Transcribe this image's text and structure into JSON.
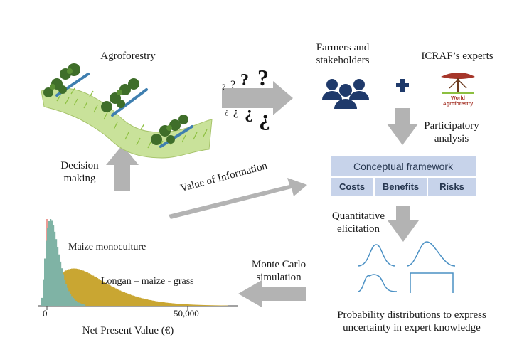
{
  "agroforestry": {
    "title": "Agroforestry"
  },
  "stakeholders": {
    "label": "Farmers and stakeholders"
  },
  "experts": {
    "label": "ICRAF’s experts",
    "logo_text": "World Agroforestry"
  },
  "participatory": {
    "label": "Participatory analysis"
  },
  "framework": {
    "title": "Conceptual framework",
    "columns": [
      "Costs",
      "Benefits",
      "Risks"
    ]
  },
  "elicitation": {
    "label": "Quantitative elicitation"
  },
  "distributions": {
    "label": "Probability distributions to express uncertainty in expert knowledge"
  },
  "monte_carlo": {
    "label": "Monte Carlo simulation"
  },
  "decision": {
    "label": "Decision making"
  },
  "voi": {
    "label": "Value of Information"
  },
  "histogram": {
    "series": [
      {
        "name": "Maize monoculture",
        "color": "#7fb3a5"
      },
      {
        "name": "Longan – maize - grass",
        "color": "#c9a632"
      }
    ],
    "tick_labels": [
      "0",
      "50,000"
    ],
    "xlabel": "Net Present Value (€)"
  },
  "colors": {
    "arrow": "#b3b3b3",
    "people": "#1f3a6b",
    "curve": "#4a90c4",
    "framework": "#c7d3ea"
  }
}
